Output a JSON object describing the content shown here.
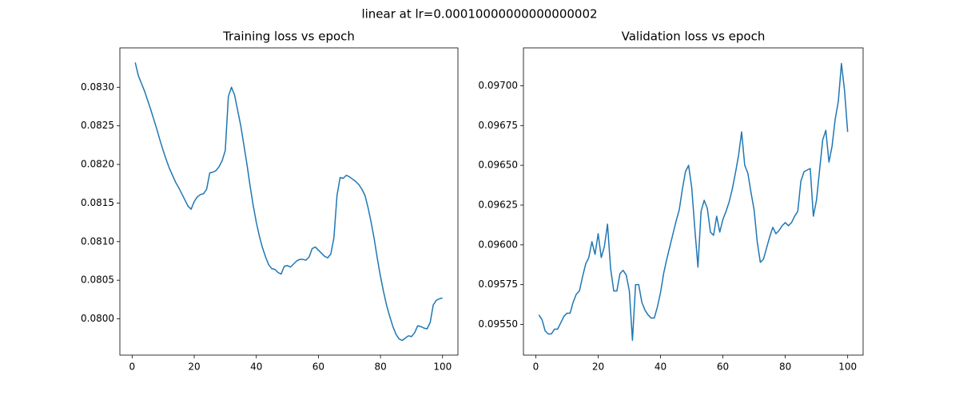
{
  "title": "linear at lr=0.00010000000000000002",
  "chart_data": [
    {
      "type": "line",
      "title": "Training loss vs epoch",
      "x": [
        1,
        2,
        3,
        4,
        5,
        6,
        7,
        8,
        9,
        10,
        11,
        12,
        13,
        14,
        15,
        16,
        17,
        18,
        19,
        20,
        21,
        22,
        23,
        24,
        25,
        26,
        27,
        28,
        29,
        30,
        31,
        32,
        33,
        34,
        35,
        36,
        37,
        38,
        39,
        40,
        41,
        42,
        43,
        44,
        45,
        46,
        47,
        48,
        49,
        50,
        51,
        52,
        53,
        54,
        55,
        56,
        57,
        58,
        59,
        60,
        61,
        62,
        63,
        64,
        65,
        66,
        67,
        68,
        69,
        70,
        71,
        72,
        73,
        74,
        75,
        76,
        77,
        78,
        79,
        80,
        81,
        82,
        83,
        84,
        85,
        86,
        87,
        88,
        89,
        90,
        91,
        92,
        93,
        94,
        95,
        96,
        97,
        98,
        99,
        100
      ],
      "series": [
        {
          "color": "#1f77b4",
          "values": [
            0.08332,
            0.08315,
            0.08305,
            0.08295,
            0.08283,
            0.08271,
            0.08258,
            0.08245,
            0.08231,
            0.08218,
            0.08206,
            0.08195,
            0.08186,
            0.08177,
            0.0817,
            0.08162,
            0.08154,
            0.08146,
            0.08142,
            0.08152,
            0.08158,
            0.08161,
            0.08162,
            0.08168,
            0.08189,
            0.0819,
            0.08192,
            0.08197,
            0.08205,
            0.08218,
            0.08288,
            0.083,
            0.0829,
            0.0827,
            0.0825,
            0.08225,
            0.082,
            0.08172,
            0.08147,
            0.08125,
            0.08107,
            0.08092,
            0.0808,
            0.0807,
            0.08065,
            0.08064,
            0.0806,
            0.08058,
            0.08068,
            0.08069,
            0.08067,
            0.08071,
            0.08075,
            0.08077,
            0.08077,
            0.08076,
            0.0808,
            0.08091,
            0.08093,
            0.08089,
            0.08085,
            0.08081,
            0.08079,
            0.08084,
            0.08105,
            0.0816,
            0.08183,
            0.08182,
            0.08186,
            0.08184,
            0.08181,
            0.08178,
            0.08174,
            0.08168,
            0.0816,
            0.08144,
            0.08125,
            0.08103,
            0.08078,
            0.08055,
            0.08035,
            0.08017,
            0.08003,
            0.0799,
            0.0798,
            0.07974,
            0.07972,
            0.07975,
            0.07978,
            0.07977,
            0.07982,
            0.07991,
            0.0799,
            0.07988,
            0.07987,
            0.07995,
            0.08018,
            0.08024,
            0.08026,
            0.08027
          ]
        }
      ],
      "xlim": [
        -3.95,
        104.95
      ],
      "xticks": [
        0,
        20,
        40,
        60,
        80,
        100
      ],
      "ylim": [
        0.07953,
        0.08351
      ],
      "yticks": [
        {
          "value": 0.08,
          "label": "0.0800"
        },
        {
          "value": 0.0805,
          "label": "0.0805"
        },
        {
          "value": 0.081,
          "label": "0.0810"
        },
        {
          "value": 0.0815,
          "label": "0.0815"
        },
        {
          "value": 0.082,
          "label": "0.0820"
        },
        {
          "value": 0.0825,
          "label": "0.0825"
        },
        {
          "value": 0.083,
          "label": "0.0830"
        }
      ]
    },
    {
      "type": "line",
      "title": "Validation loss vs epoch",
      "x": [
        1,
        2,
        3,
        4,
        5,
        6,
        7,
        8,
        9,
        10,
        11,
        12,
        13,
        14,
        15,
        16,
        17,
        18,
        19,
        20,
        21,
        22,
        23,
        24,
        25,
        26,
        27,
        28,
        29,
        30,
        31,
        32,
        33,
        34,
        35,
        36,
        37,
        38,
        39,
        40,
        41,
        42,
        43,
        44,
        45,
        46,
        47,
        48,
        49,
        50,
        51,
        52,
        53,
        54,
        55,
        56,
        57,
        58,
        59,
        60,
        61,
        62,
        63,
        64,
        65,
        66,
        67,
        68,
        69,
        70,
        71,
        72,
        73,
        74,
        75,
        76,
        77,
        78,
        79,
        80,
        81,
        82,
        83,
        84,
        85,
        86,
        87,
        88,
        89,
        90,
        91,
        92,
        93,
        94,
        95,
        96,
        97,
        98,
        99,
        100
      ],
      "series": [
        {
          "color": "#1f77b4",
          "values": [
            0.09556,
            0.09553,
            0.09546,
            0.09544,
            0.09544,
            0.09547,
            0.09547,
            0.09551,
            0.09555,
            0.09557,
            0.09557,
            0.09564,
            0.09569,
            0.09571,
            0.0958,
            0.09588,
            0.09592,
            0.09602,
            0.09594,
            0.09607,
            0.09592,
            0.09599,
            0.09613,
            0.09585,
            0.09571,
            0.09571,
            0.09582,
            0.09584,
            0.09581,
            0.09571,
            0.0954,
            0.09575,
            0.09575,
            0.09564,
            0.09559,
            0.09556,
            0.09554,
            0.09554,
            0.09561,
            0.0957,
            0.09582,
            0.09591,
            0.09599,
            0.09607,
            0.09615,
            0.09622,
            0.09635,
            0.09646,
            0.0965,
            0.09636,
            0.0961,
            0.09586,
            0.09621,
            0.09628,
            0.09623,
            0.09608,
            0.09606,
            0.09618,
            0.09608,
            0.09616,
            0.09621,
            0.09627,
            0.09635,
            0.09645,
            0.09656,
            0.09671,
            0.0965,
            0.09645,
            0.09633,
            0.09622,
            0.09602,
            0.09589,
            0.09591,
            0.09598,
            0.09605,
            0.09611,
            0.09607,
            0.09609,
            0.09612,
            0.09614,
            0.09612,
            0.09614,
            0.09618,
            0.09621,
            0.0964,
            0.09646,
            0.09647,
            0.09648,
            0.09618,
            0.09628,
            0.09647,
            0.09666,
            0.09672,
            0.09652,
            0.09662,
            0.09679,
            0.0969,
            0.09714,
            0.09697,
            0.09671
          ]
        }
      ],
      "xlim": [
        -3.95,
        104.95
      ],
      "xticks": [
        0,
        20,
        40,
        60,
        80,
        100
      ],
      "ylim": [
        0.095307,
        0.097238
      ],
      "yticks": [
        {
          "value": 0.0955,
          "label": "0.09550"
        },
        {
          "value": 0.09575,
          "label": "0.09575"
        },
        {
          "value": 0.096,
          "label": "0.09600"
        },
        {
          "value": 0.09625,
          "label": "0.09625"
        },
        {
          "value": 0.0965,
          "label": "0.09650"
        },
        {
          "value": 0.09675,
          "label": "0.09675"
        },
        {
          "value": 0.097,
          "label": "0.09700"
        }
      ]
    }
  ]
}
